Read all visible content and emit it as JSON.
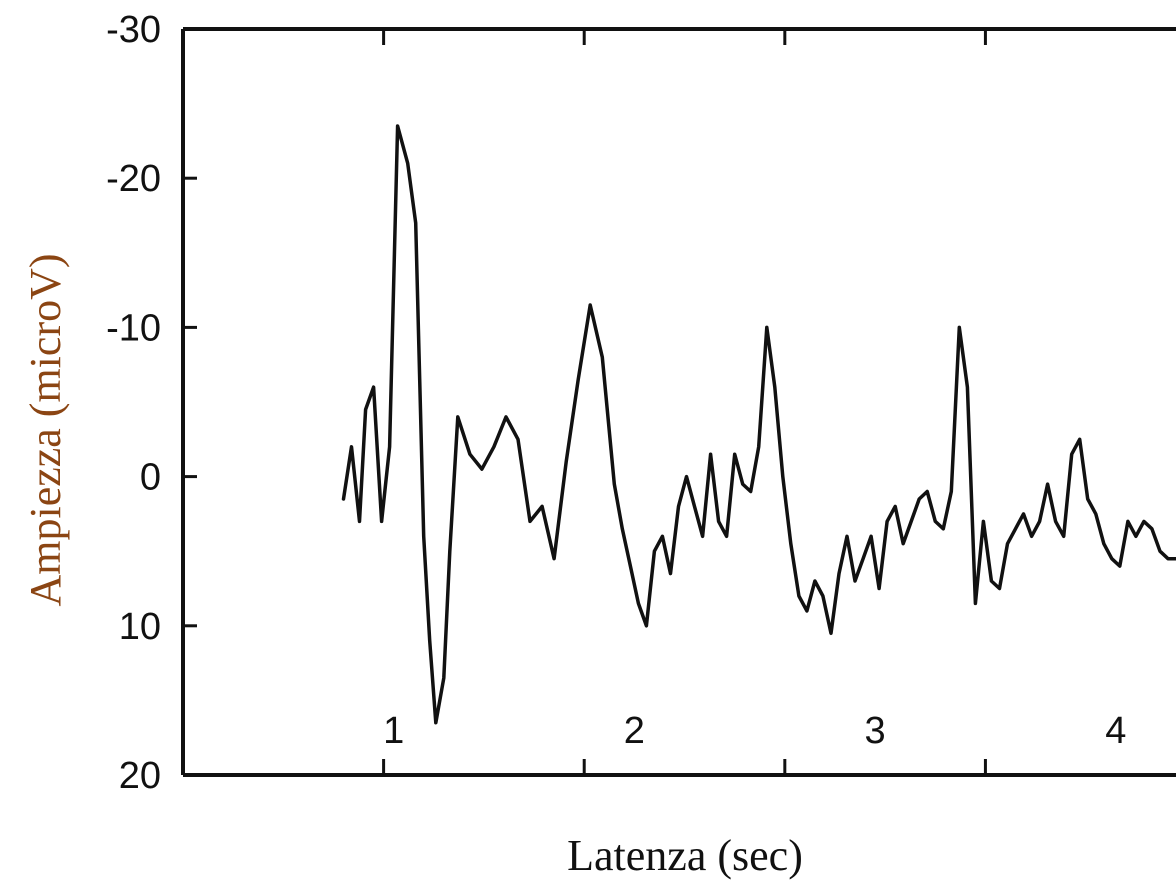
{
  "colors": {
    "ylabel": "#8B4513",
    "text": "#111111",
    "line": "#111111"
  },
  "chart_data": {
    "type": "line",
    "title": "",
    "xlabel": "Latenza (sec)",
    "ylabel": "Ampiezza (microV)",
    "y_inverted": true,
    "ylim": [
      20,
      -30
    ],
    "xlim": [
      0,
      4.95
    ],
    "yticks": [
      -30,
      -20,
      -10,
      0,
      10,
      20
    ],
    "ytick_labels": [
      "-30",
      "-20",
      "-10",
      "0",
      "10",
      "20"
    ],
    "xticks": [
      1,
      2,
      3,
      4
    ],
    "grid": false,
    "in_plot_labels": [
      {
        "text": "1",
        "x": 1.05,
        "y": 17
      },
      {
        "text": "2",
        "x": 2.25,
        "y": 17
      },
      {
        "text": "3",
        "x": 3.45,
        "y": 17
      },
      {
        "text": "4",
        "x": 4.65,
        "y": 17
      }
    ],
    "series": [
      {
        "x": [
          0.8,
          0.84,
          0.88,
          0.91,
          0.95,
          0.99,
          1.03,
          1.07,
          1.12,
          1.16,
          1.2,
          1.23,
          1.26,
          1.3,
          1.33,
          1.37,
          1.43,
          1.49,
          1.55,
          1.61,
          1.67,
          1.73,
          1.79,
          1.85,
          1.91,
          1.97,
          2.03,
          2.09,
          2.15,
          2.19,
          2.23,
          2.27,
          2.31,
          2.35,
          2.39,
          2.43,
          2.47,
          2.51,
          2.55,
          2.59,
          2.63,
          2.67,
          2.71,
          2.75,
          2.79,
          2.83,
          2.87,
          2.91,
          2.95,
          2.99,
          3.03,
          3.07,
          3.11,
          3.15,
          3.19,
          3.23,
          3.27,
          3.31,
          3.35,
          3.39,
          3.43,
          3.47,
          3.51,
          3.55,
          3.59,
          3.63,
          3.67,
          3.71,
          3.75,
          3.79,
          3.83,
          3.87,
          3.91,
          3.95,
          3.99,
          4.03,
          4.07,
          4.11,
          4.15,
          4.19,
          4.23,
          4.27,
          4.31,
          4.35,
          4.39,
          4.43,
          4.47,
          4.51,
          4.55,
          4.59,
          4.63,
          4.67,
          4.71,
          4.75,
          4.79,
          4.83,
          4.87,
          4.91,
          4.95
        ],
        "y": [
          1.5,
          -2.0,
          3.0,
          -4.5,
          -6.0,
          3.0,
          -2.0,
          -23.5,
          -21.0,
          -17.0,
          4.0,
          11.0,
          16.5,
          13.5,
          5.0,
          -4.0,
          -1.5,
          -0.5,
          -2.0,
          -4.0,
          -2.5,
          3.0,
          2.0,
          5.5,
          -1.0,
          -6.5,
          -11.5,
          -8.0,
          0.5,
          3.5,
          6.0,
          8.5,
          10.0,
          5.0,
          4.0,
          6.5,
          2.0,
          0.0,
          2.0,
          4.0,
          -1.5,
          3.0,
          4.0,
          -1.5,
          0.5,
          1.0,
          -2.0,
          -10.0,
          -6.0,
          0.0,
          4.5,
          8.0,
          9.0,
          7.0,
          8.0,
          10.5,
          6.5,
          4.0,
          7.0,
          5.5,
          4.0,
          7.5,
          3.0,
          2.0,
          4.5,
          3.0,
          1.5,
          1.0,
          3.0,
          3.5,
          1.0,
          -10.0,
          -6.0,
          8.5,
          3.0,
          7.0,
          7.5,
          4.5,
          3.5,
          2.5,
          4.0,
          3.0,
          0.5,
          3.0,
          4.0,
          -1.5,
          -2.5,
          1.5,
          2.5,
          4.5,
          5.5,
          6.0,
          3.0,
          4.0,
          3.0,
          3.5,
          5.0,
          5.5,
          5.5
        ]
      }
    ]
  }
}
